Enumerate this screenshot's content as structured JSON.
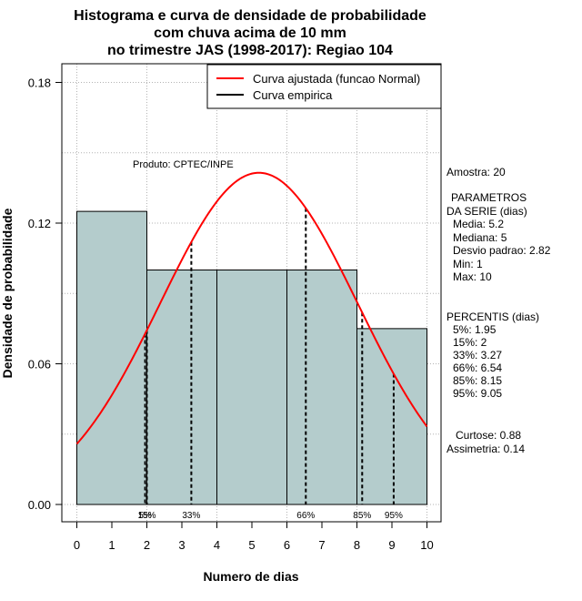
{
  "chart_data": {
    "type": "bar",
    "title_lines": [
      "Histograma e curva de densidade de probabilidade",
      "com chuva acima de 10 mm",
      "no trimestre JAS (1998-2017): Regiao 104"
    ],
    "xlabel": "Numero de dias",
    "ylabel": "Densidade de probabilidade",
    "xlim": [
      0,
      10
    ],
    "ylim": [
      0,
      0.18
    ],
    "x_ticks": [
      "0",
      "1",
      "2",
      "3",
      "4",
      "5",
      "6",
      "7",
      "8",
      "9",
      "10"
    ],
    "y_ticks": [
      "0.00",
      "0.06",
      "0.12",
      "0.18"
    ],
    "bins": [
      {
        "start": 0,
        "end": 2,
        "density": 0.125
      },
      {
        "start": 2,
        "end": 4,
        "density": 0.1
      },
      {
        "start": 4,
        "end": 6,
        "density": 0.1
      },
      {
        "start": 6,
        "end": 8,
        "density": 0.1
      },
      {
        "start": 8,
        "end": 10,
        "density": 0.075
      }
    ],
    "fitted_curve": {
      "mean": 5.2,
      "sd": 2.82
    },
    "percentile_lines": [
      {
        "label": "5%",
        "value": 1.95
      },
      {
        "label": "15%",
        "value": 2
      },
      {
        "label": "33%",
        "value": 3.27
      },
      {
        "label": "66%",
        "value": 6.54
      },
      {
        "label": "85%",
        "value": 8.15
      },
      {
        "label": "95%",
        "value": 9.05
      }
    ],
    "legend": {
      "position": "top-right",
      "entries": [
        {
          "label": "Curva ajustada (funcao Normal)",
          "color": "#ff0000"
        },
        {
          "label": "Curva empirica",
          "color": "#000000"
        }
      ]
    },
    "product_label": "Produto: CPTEC/INPE",
    "colors": {
      "bar_fill": "#b4cccc",
      "curve": "#ff0000",
      "grid": "#b3b3b3"
    }
  },
  "side_panel": {
    "amostra": "Amostra: 20",
    "param_title_1": "PARAMETROS",
    "param_title_2": "DA SERIE (dias)",
    "media": "Media: 5.2",
    "mediana": "Mediana: 5",
    "desvio": "Desvio padrao: 2.82",
    "min": "Min: 1",
    "max": "Max: 10",
    "pct_title": "PERCENTIS (dias)",
    "p5": "5%: 1.95",
    "p15": "15%: 2",
    "p33": "33%: 3.27",
    "p66": "66%: 6.54",
    "p85": "85%: 8.15",
    "p95": "95%: 9.05",
    "curtose": "Curtose: 0.88",
    "assimetria": "Assimetria: 0.14"
  }
}
